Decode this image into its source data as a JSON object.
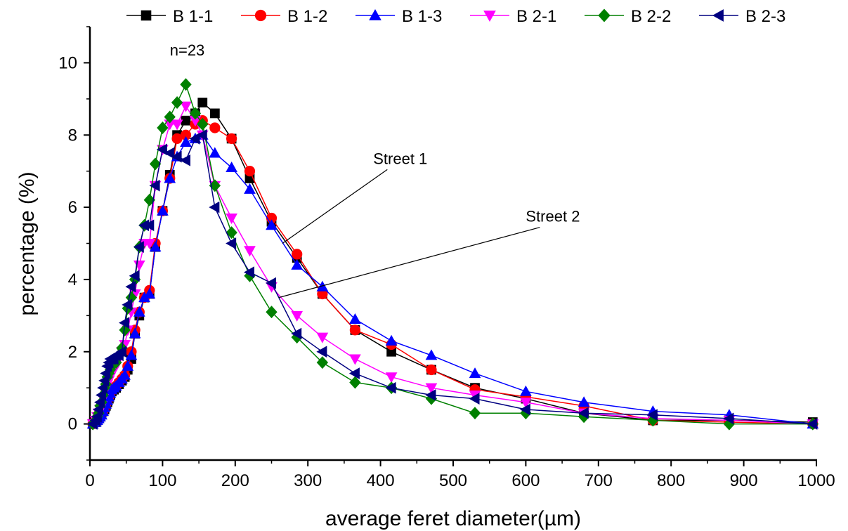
{
  "chart_data": {
    "type": "line",
    "xlabel": "average feret diameter(µm)",
    "ylabel": "percentage (%)",
    "xlim": [
      0,
      1000
    ],
    "ylim": [
      -1,
      11
    ],
    "xticks": [
      0,
      100,
      200,
      300,
      400,
      500,
      600,
      700,
      800,
      900,
      1000
    ],
    "yticks": [
      0,
      2,
      4,
      6,
      8,
      10
    ],
    "grid": false,
    "legend_position": "top",
    "annotations": [
      {
        "text": "n=23",
        "x": 110,
        "y": 10.2
      },
      {
        "text": "Street 1",
        "x": 390,
        "y": 7.2,
        "point_x": 265,
        "point_y": 5.0
      },
      {
        "text": "Street 2",
        "x": 600,
        "y": 5.6,
        "point_x": 260,
        "point_y": 3.5
      }
    ],
    "series": [
      {
        "name": "B 1-1",
        "color": "#000000",
        "marker": "square",
        "x": [
          4,
          8,
          10,
          12,
          14,
          16,
          18,
          20,
          22,
          24,
          26,
          28,
          30,
          33,
          36,
          40,
          44,
          48,
          52,
          57,
          62,
          68,
          75,
          82,
          90,
          100,
          110,
          120,
          132,
          145,
          155,
          172,
          195,
          220,
          250,
          285,
          320,
          365,
          415,
          470,
          530,
          600,
          680,
          775,
          880,
          995
        ],
        "y": [
          0.0,
          0.05,
          0.1,
          0.15,
          0.2,
          0.3,
          0.35,
          0.4,
          0.5,
          0.6,
          0.7,
          0.8,
          0.9,
          0.95,
          1.0,
          1.1,
          1.2,
          1.3,
          1.5,
          1.8,
          2.5,
          3.0,
          3.5,
          3.6,
          4.9,
          5.9,
          6.9,
          8.0,
          8.4,
          8.6,
          8.9,
          8.6,
          7.9,
          6.8,
          5.6,
          4.6,
          3.6,
          2.6,
          2.0,
          1.5,
          1.0,
          0.7,
          0.3,
          0.1,
          0.1,
          0.05
        ]
      },
      {
        "name": "B 1-2",
        "color": "#ff0000",
        "marker": "circle",
        "x": [
          4,
          8,
          10,
          12,
          14,
          16,
          18,
          20,
          22,
          24,
          26,
          28,
          30,
          33,
          36,
          40,
          44,
          48,
          52,
          57,
          62,
          68,
          75,
          82,
          90,
          100,
          110,
          120,
          132,
          145,
          155,
          172,
          195,
          220,
          250,
          285,
          320,
          365,
          415,
          470,
          530,
          600,
          680,
          775,
          880,
          995
        ],
        "y": [
          0.0,
          0.05,
          0.1,
          0.15,
          0.2,
          0.3,
          0.35,
          0.45,
          0.55,
          0.65,
          0.75,
          0.85,
          0.95,
          1.0,
          1.05,
          1.15,
          1.25,
          1.35,
          1.6,
          2.0,
          2.6,
          3.1,
          3.5,
          3.7,
          5.0,
          5.9,
          6.8,
          7.9,
          8.0,
          8.3,
          8.4,
          8.2,
          7.9,
          7.0,
          5.7,
          4.7,
          3.6,
          2.6,
          2.2,
          1.5,
          0.95,
          0.75,
          0.5,
          0.1,
          0.05,
          0.0
        ]
      },
      {
        "name": "B 1-3",
        "color": "#0000ff",
        "marker": "triangle-up",
        "x": [
          4,
          8,
          10,
          12,
          14,
          16,
          18,
          20,
          22,
          24,
          26,
          28,
          30,
          33,
          36,
          40,
          44,
          48,
          52,
          57,
          62,
          68,
          75,
          82,
          90,
          100,
          110,
          120,
          132,
          145,
          155,
          172,
          195,
          220,
          250,
          285,
          320,
          365,
          415,
          470,
          530,
          600,
          680,
          775,
          880,
          995
        ],
        "y": [
          0.0,
          0.05,
          0.1,
          0.15,
          0.2,
          0.25,
          0.35,
          0.45,
          0.55,
          0.65,
          0.75,
          0.85,
          0.95,
          1.0,
          1.05,
          1.15,
          1.25,
          1.35,
          1.6,
          1.9,
          2.5,
          3.1,
          3.5,
          3.6,
          4.9,
          5.9,
          6.8,
          7.4,
          7.8,
          7.9,
          8.0,
          7.5,
          7.1,
          6.5,
          5.5,
          4.4,
          3.8,
          2.9,
          2.3,
          1.9,
          1.4,
          0.9,
          0.6,
          0.35,
          0.25,
          0.0
        ]
      },
      {
        "name": "B 2-1",
        "color": "#ff00ff",
        "marker": "triangle-down",
        "x": [
          4,
          8,
          10,
          12,
          14,
          16,
          18,
          20,
          22,
          24,
          26,
          28,
          30,
          33,
          36,
          40,
          44,
          48,
          52,
          57,
          62,
          68,
          75,
          82,
          90,
          100,
          110,
          120,
          132,
          145,
          155,
          172,
          195,
          220,
          250,
          285,
          320,
          365,
          415,
          470,
          530,
          600,
          680,
          775,
          880,
          995
        ],
        "y": [
          0.0,
          0.1,
          0.2,
          0.3,
          0.4,
          0.5,
          0.7,
          0.9,
          1.0,
          1.1,
          1.2,
          1.3,
          1.4,
          1.5,
          1.6,
          1.8,
          2.0,
          2.2,
          2.6,
          3.1,
          3.6,
          4.4,
          5.0,
          5.0,
          6.6,
          7.6,
          8.3,
          8.3,
          8.8,
          8.4,
          8.0,
          6.6,
          5.7,
          4.8,
          3.8,
          3.0,
          2.4,
          1.8,
          1.3,
          1.0,
          0.8,
          0.6,
          0.3,
          0.15,
          0.1,
          0.0
        ]
      },
      {
        "name": "B 2-2",
        "color": "#008000",
        "marker": "diamond",
        "x": [
          4,
          8,
          10,
          12,
          14,
          16,
          18,
          20,
          22,
          24,
          26,
          28,
          30,
          33,
          36,
          40,
          44,
          48,
          52,
          57,
          62,
          68,
          75,
          82,
          90,
          100,
          110,
          120,
          132,
          145,
          155,
          172,
          195,
          220,
          250,
          285,
          320,
          365,
          415,
          470,
          530,
          600,
          680,
          775,
          880,
          995
        ],
        "y": [
          0.0,
          0.1,
          0.2,
          0.3,
          0.5,
          0.6,
          0.8,
          1.0,
          1.1,
          1.3,
          1.4,
          1.5,
          1.6,
          1.7,
          1.7,
          1.9,
          2.1,
          2.6,
          3.2,
          3.5,
          4.0,
          4.9,
          5.5,
          6.2,
          7.2,
          8.2,
          8.5,
          8.9,
          9.4,
          8.6,
          8.3,
          6.6,
          5.3,
          4.1,
          3.1,
          2.4,
          1.7,
          1.15,
          1.0,
          0.7,
          0.3,
          0.3,
          0.2,
          0.1,
          0.0,
          0.0
        ]
      },
      {
        "name": "B 2-3",
        "color": "#000080",
        "marker": "triangle-left",
        "x": [
          4,
          8,
          10,
          12,
          14,
          16,
          18,
          20,
          22,
          24,
          26,
          28,
          30,
          33,
          36,
          40,
          44,
          48,
          52,
          57,
          62,
          68,
          75,
          82,
          90,
          100,
          110,
          120,
          132,
          145,
          155,
          172,
          195,
          220,
          250,
          285,
          320,
          365,
          415,
          470,
          530,
          600,
          680,
          775,
          880,
          995
        ],
        "y": [
          0.0,
          0.1,
          0.2,
          0.4,
          0.6,
          0.8,
          1.0,
          1.2,
          1.4,
          1.6,
          1.7,
          1.8,
          1.8,
          1.8,
          1.9,
          1.9,
          2.0,
          2.8,
          3.3,
          3.8,
          4.1,
          4.9,
          5.5,
          5.5,
          6.6,
          7.6,
          7.5,
          7.4,
          7.3,
          7.9,
          8.0,
          6.0,
          5.0,
          4.2,
          3.9,
          2.5,
          2.0,
          1.4,
          1.0,
          0.8,
          0.7,
          0.4,
          0.3,
          0.25,
          0.15,
          0.0
        ]
      }
    ]
  }
}
